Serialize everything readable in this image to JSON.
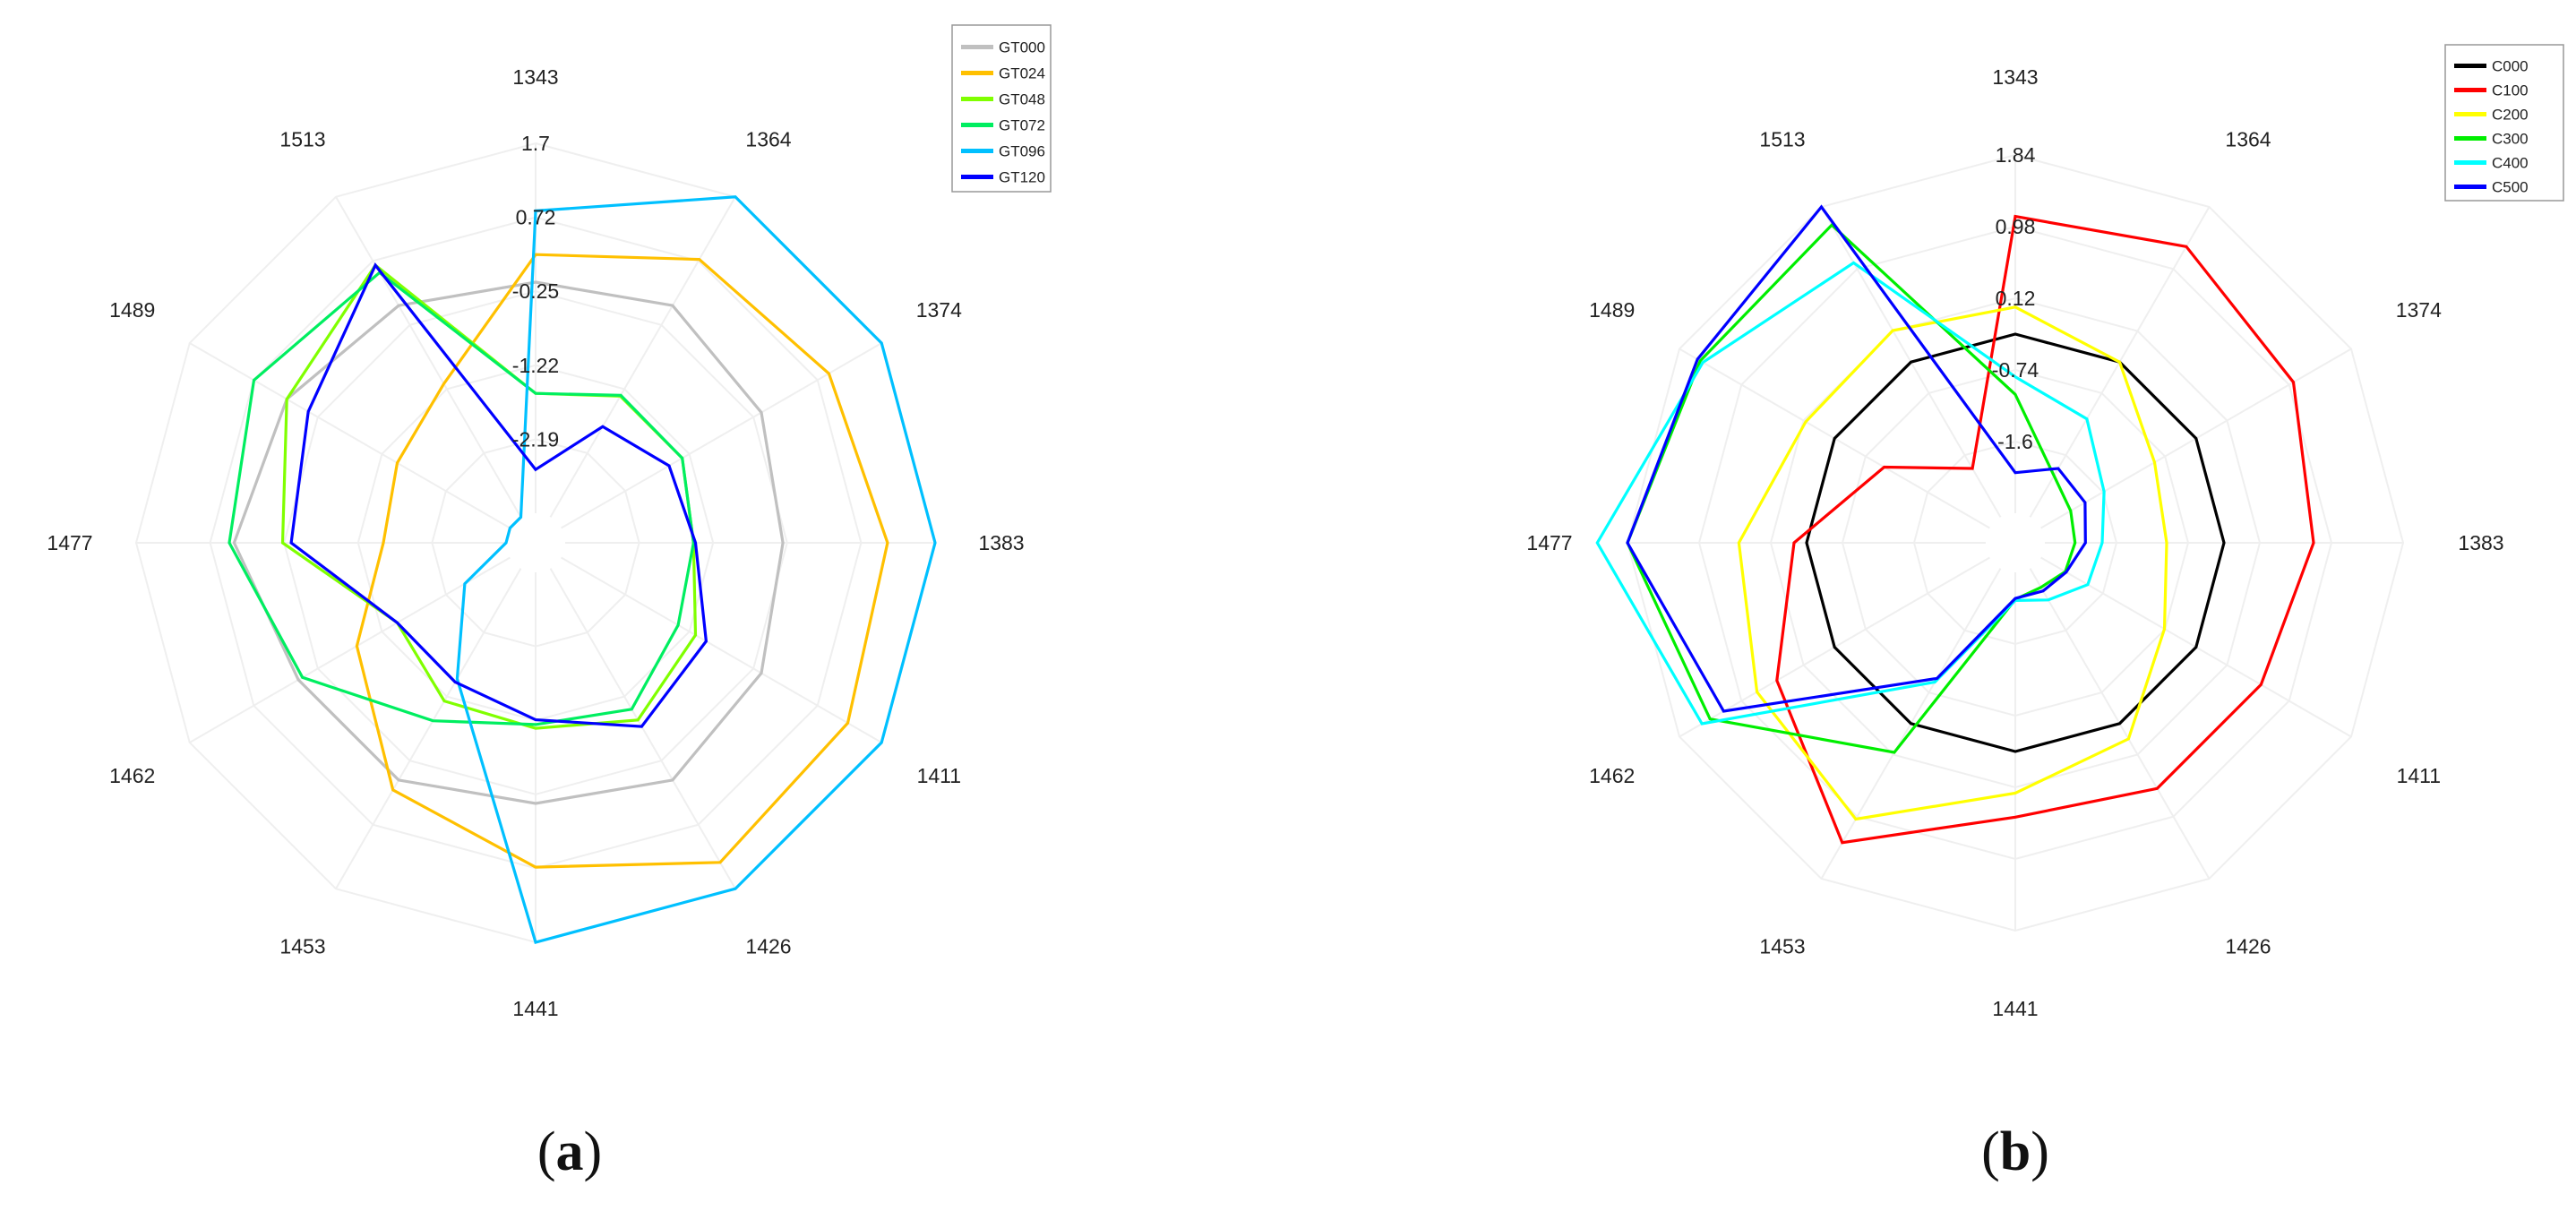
{
  "chart_data": [
    {
      "type": "radar",
      "panel_label": {
        "open": "(",
        "letter": "a",
        "close": ")"
      },
      "categories": [
        "1343",
        "1364",
        "1374",
        "1383",
        "1411",
        "1426",
        "1441",
        "1453",
        "1462",
        "1477",
        "1489",
        "1513"
      ],
      "tick_labels": [
        "1.7",
        "0.72",
        "-0.25",
        "-1.22",
        "-2.19"
      ],
      "rlim": [
        -2.19,
        1.7
      ],
      "grid": true,
      "legend": "top-right",
      "series": [
        {
          "name": "GT000",
          "color": "#c0c0c0",
          "values": [
            0.24,
            0.38,
            0.24,
            0.1,
            0.24,
            0.38,
            0.24,
            0.38,
            0.38,
            0.67,
            0.52,
            0.38
          ]
        },
        {
          "name": "GT024",
          "color": "#ffc000",
          "values": [
            0.53,
            0.94,
            1.06,
            1.2,
            1.29,
            1.38,
            0.91,
            0.5,
            -0.33,
            -0.9,
            -0.82,
            -0.57
          ]
        },
        {
          "name": "GT048",
          "color": "#80ff00",
          "values": [
            -0.93,
            -0.72,
            -0.72,
            -0.84,
            -0.56,
            -0.35,
            -0.55,
            -0.58,
            -0.82,
            0.16,
            0.52,
            0.87
          ]
        },
        {
          "name": "GT072",
          "color": "#00ee60",
          "values": [
            -0.93,
            -0.71,
            -0.72,
            -0.84,
            -0.77,
            -0.48,
            -0.59,
            -0.34,
            0.33,
            0.72,
            0.92,
            0.78
          ]
        },
        {
          "name": "GT096",
          "color": "#00c0ff",
          "values": [
            0.99,
            1.7,
            1.7,
            1.7,
            1.7,
            1.7,
            1.7,
            -0.85,
            -1.64,
            -2.19,
            -2.19,
            -2.19
          ]
        },
        {
          "name": "GT120",
          "color": "#0000ff",
          "values": [
            -1.73,
            -1.09,
            -0.88,
            -0.82,
            -0.43,
            -0.27,
            -0.64,
            -0.81,
            -0.82,
            0.07,
            0.26,
            0.87
          ]
        }
      ]
    },
    {
      "type": "radar",
      "panel_label": {
        "open": "(",
        "letter": "b",
        "close": ")"
      },
      "categories": [
        "1343",
        "1364",
        "1374",
        "1383",
        "1411",
        "1426",
        "1441",
        "1453",
        "1462",
        "1477",
        "1489",
        "1513"
      ],
      "tick_labels": [
        "1.84",
        "0.98",
        "0.12",
        "-0.74",
        "-1.6"
      ],
      "rlim": [
        -1.6,
        1.84
      ],
      "grid": true,
      "legend": "top-right",
      "series": [
        {
          "name": "C000",
          "color": "#000000",
          "values": [
            0.12,
            0.12,
            0.12,
            0.12,
            0.12,
            0.12,
            0.12,
            0.12,
            0.12,
            0.12,
            0.12,
            0.12
          ]
        },
        {
          "name": "C100",
          "color": "#ff0000",
          "values": [
            1.25,
            1.4,
            1.2,
            0.98,
            0.84,
            0.84,
            0.75,
            1.44,
            0.76,
            0.24,
            -0.43,
            -1.06
          ]
        },
        {
          "name": "C200",
          "color": "#ffff00",
          "values": [
            0.38,
            0.12,
            -0.34,
            -0.43,
            -0.23,
            0.29,
            0.52,
            1.18,
            0.98,
            0.77,
            0.44,
            0.47
          ]
        },
        {
          "name": "C300",
          "color": "#00ee00",
          "values": [
            -0.46,
            -1.14,
            -1.27,
            -1.31,
            -1.33,
            -1.39,
            -1.34,
            0.44,
            1.5,
            1.84,
            1.61,
            1.64
          ]
        },
        {
          "name": "C400",
          "color": "#00ffff",
          "values": [
            -0.29,
            -0.51,
            -0.9,
            -1.05,
            -1.08,
            -1.25,
            -1.33,
            -0.34,
            1.59,
            2.13,
            1.58,
            1.22
          ]
        },
        {
          "name": "C500",
          "color": "#0000ff",
          "values": [
            -1.21,
            -1.06,
            -1.11,
            -1.21,
            -1.32,
            -1.35,
            -1.35,
            -0.38,
            1.35,
            1.84,
            1.64,
            1.84
          ]
        }
      ]
    }
  ]
}
